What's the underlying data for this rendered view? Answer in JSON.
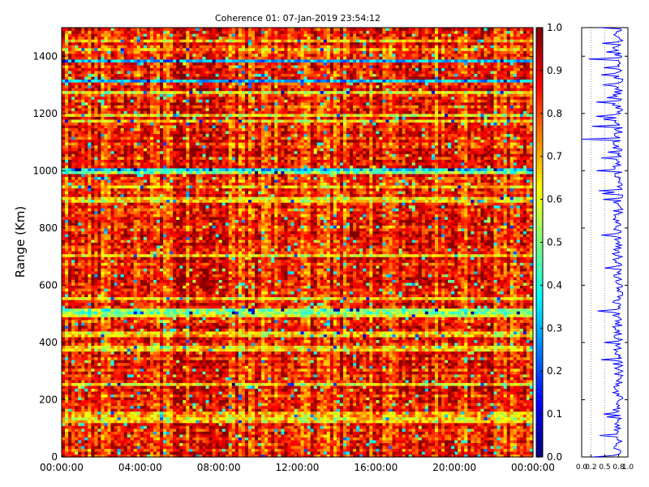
{
  "chart_data": [
    {
      "type": "heatmap",
      "title": "Coherence 01: 07-Jan-2019 23:54:12",
      "ylabel": "Range (Km)",
      "xlabel": "",
      "x_tick_labels": [
        "00:00:00",
        "04:00:00",
        "08:00:00",
        "12:00:00",
        "16:00:00",
        "20:00:00",
        "00:00:00"
      ],
      "y_ticks": [
        0,
        200,
        400,
        600,
        800,
        1000,
        1200,
        1400
      ],
      "ylim": [
        0,
        1500
      ],
      "xlim_hours": [
        0,
        24
      ],
      "colormap": "jet",
      "colorbar": {
        "ticks": [
          0.0,
          0.1,
          0.2,
          0.3,
          0.4,
          0.5,
          0.6,
          0.7,
          0.8,
          0.9,
          1.0
        ],
        "range": [
          0,
          1
        ]
      },
      "n_time_bins": 144,
      "n_range_bins": 150,
      "typical_value": 0.85,
      "low_coherence_range_bands_km": [
        {
          "range_km": 1387,
          "value": 0.15
        },
        {
          "range_km": 1315,
          "value": 0.35
        },
        {
          "range_km": 1005,
          "value": 0.2
        },
        {
          "range_km": 995,
          "value": 0.35
        },
        {
          "range_km": 900,
          "value": 0.5
        },
        {
          "range_km": 512,
          "value": 0.35
        },
        {
          "range_km": 500,
          "value": 0.45
        },
        {
          "range_km": 150,
          "value": 0.55
        }
      ],
      "grid": false,
      "legend": "none"
    },
    {
      "type": "line",
      "title": "",
      "x_tick_labels": [
        "0.0",
        "0.2",
        "0.5",
        "0.8",
        "1.0"
      ],
      "xlim": [
        0,
        1
      ],
      "ylim": [
        0,
        1500
      ],
      "series_color": "#0000ff",
      "mean_value": 0.78,
      "dips": [
        {
          "range_km": 1390,
          "value": 0.12
        },
        {
          "range_km": 1335,
          "value": 0.4
        },
        {
          "range_km": 1110,
          "value": 0.0
        },
        {
          "range_km": 1000,
          "value": 0.3
        },
        {
          "range_km": 900,
          "value": 0.45
        },
        {
          "range_km": 660,
          "value": 0.45
        },
        {
          "range_km": 510,
          "value": 0.3
        },
        {
          "range_km": 150,
          "value": 0.45
        },
        {
          "range_km": 0,
          "value": 0.2
        }
      ]
    }
  ]
}
